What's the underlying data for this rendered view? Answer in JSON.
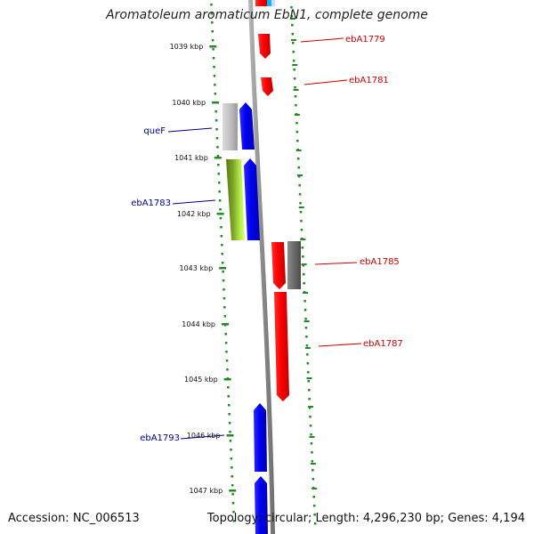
{
  "title": "Aromatoleum aromaticum EbN1, complete genome",
  "footer": {
    "accession": "Accession: NC_006513",
    "topology": "Topology: circular; Length: 4,296,230 bp; Genes: 4,194"
  },
  "colors": {
    "ruler": "#228b22",
    "backbone": "#8c8c8c",
    "forward_gene": "#0000ff",
    "reverse_gene": "#ff0000",
    "label_forward": "#00008b",
    "label_reverse": "#cc0000"
  },
  "ruler_ticks": [
    "1039 kbp",
    "1040 kbp",
    "1041 kbp",
    "1042 kbp",
    "1043 kbp",
    "1044 kbp",
    "1045 kbp",
    "1046 kbp",
    "1047 kbp"
  ],
  "gene_labels": [
    {
      "name": "ebA1779",
      "strand": "reverse"
    },
    {
      "name": "ebA1781",
      "strand": "reverse"
    },
    {
      "name": "queF",
      "strand": "forward"
    },
    {
      "name": "ebA1783",
      "strand": "forward"
    },
    {
      "name": "ebA1785",
      "strand": "reverse"
    },
    {
      "name": "ebA1787",
      "strand": "reverse"
    },
    {
      "name": "ebA1793",
      "strand": "forward"
    }
  ]
}
